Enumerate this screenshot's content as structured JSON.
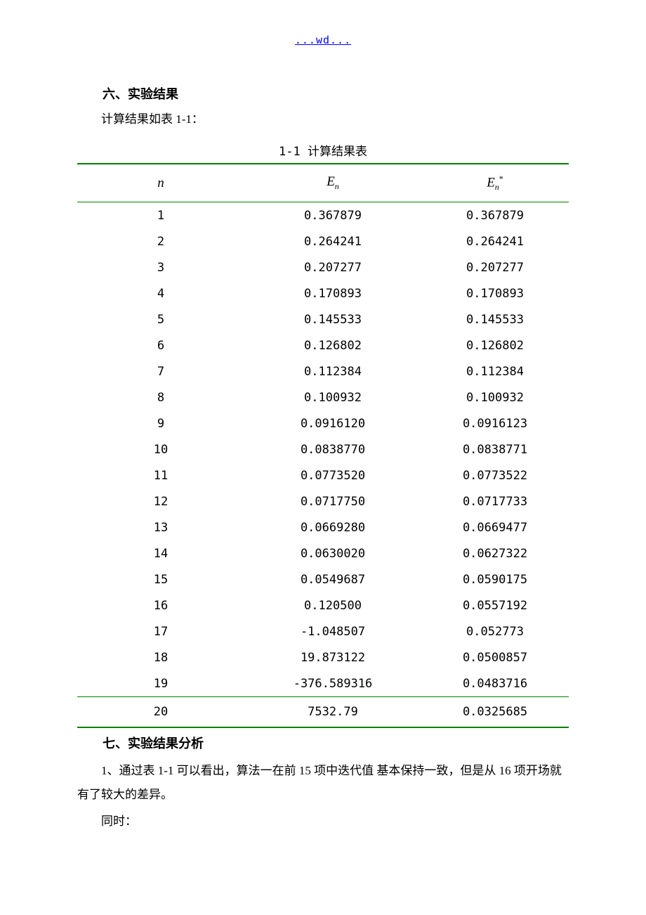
{
  "header": {
    "link_text": "...wd..."
  },
  "section1": {
    "heading": "六、实验结果",
    "intro": "计算结果如表 1-1："
  },
  "table": {
    "caption": "1-1 计算结果表",
    "columns": {
      "n": "n",
      "en_base": "E",
      "en_sub": "n",
      "ens_base": "E",
      "ens_sub": "n",
      "ens_sup": "*"
    },
    "rows": [
      {
        "n": "1",
        "en": "0.367879",
        "ens": "0.367879"
      },
      {
        "n": "2",
        "en": "0.264241",
        "ens": "0.264241"
      },
      {
        "n": "3",
        "en": "0.207277",
        "ens": "0.207277"
      },
      {
        "n": "4",
        "en": "0.170893",
        "ens": "0.170893"
      },
      {
        "n": "5",
        "en": "0.145533",
        "ens": "0.145533"
      },
      {
        "n": "6",
        "en": "0.126802",
        "ens": "0.126802"
      },
      {
        "n": "7",
        "en": "0.112384",
        "ens": "0.112384"
      },
      {
        "n": "8",
        "en": "0.100932",
        "ens": "0.100932"
      },
      {
        "n": "9",
        "en": "0.0916120",
        "ens": "0.0916123"
      },
      {
        "n": "10",
        "en": "0.0838770",
        "ens": "0.0838771"
      },
      {
        "n": "11",
        "en": "0.0773520",
        "ens": "0.0773522"
      },
      {
        "n": "12",
        "en": "0.0717750",
        "ens": "0.0717733"
      },
      {
        "n": "13",
        "en": "0.0669280",
        "ens": "0.0669477"
      },
      {
        "n": "14",
        "en": "0.0630020",
        "ens": "0.0627322"
      },
      {
        "n": "15",
        "en": "0.0549687",
        "ens": "0.0590175"
      },
      {
        "n": "16",
        "en": "0.120500",
        "ens": "0.0557192"
      },
      {
        "n": "17",
        "en": "-1.048507",
        "ens": "0.052773"
      },
      {
        "n": "18",
        "en": "19.873122",
        "ens": "0.0500857"
      },
      {
        "n": "19",
        "en": "-376.589316",
        "ens": "0.0483716"
      },
      {
        "n": "20",
        "en": "7532.79",
        "ens": "0.0325685"
      }
    ],
    "border_color": "#008000",
    "background_color": "#ffffff"
  },
  "section2": {
    "heading": "七、实验结果分析",
    "para1": "1、通过表 1-1 可以看出，算法一在前 15 项中迭代值 基本保持一致，但是从 16 项开场就有了较大的差异。",
    "para2": "同时："
  }
}
